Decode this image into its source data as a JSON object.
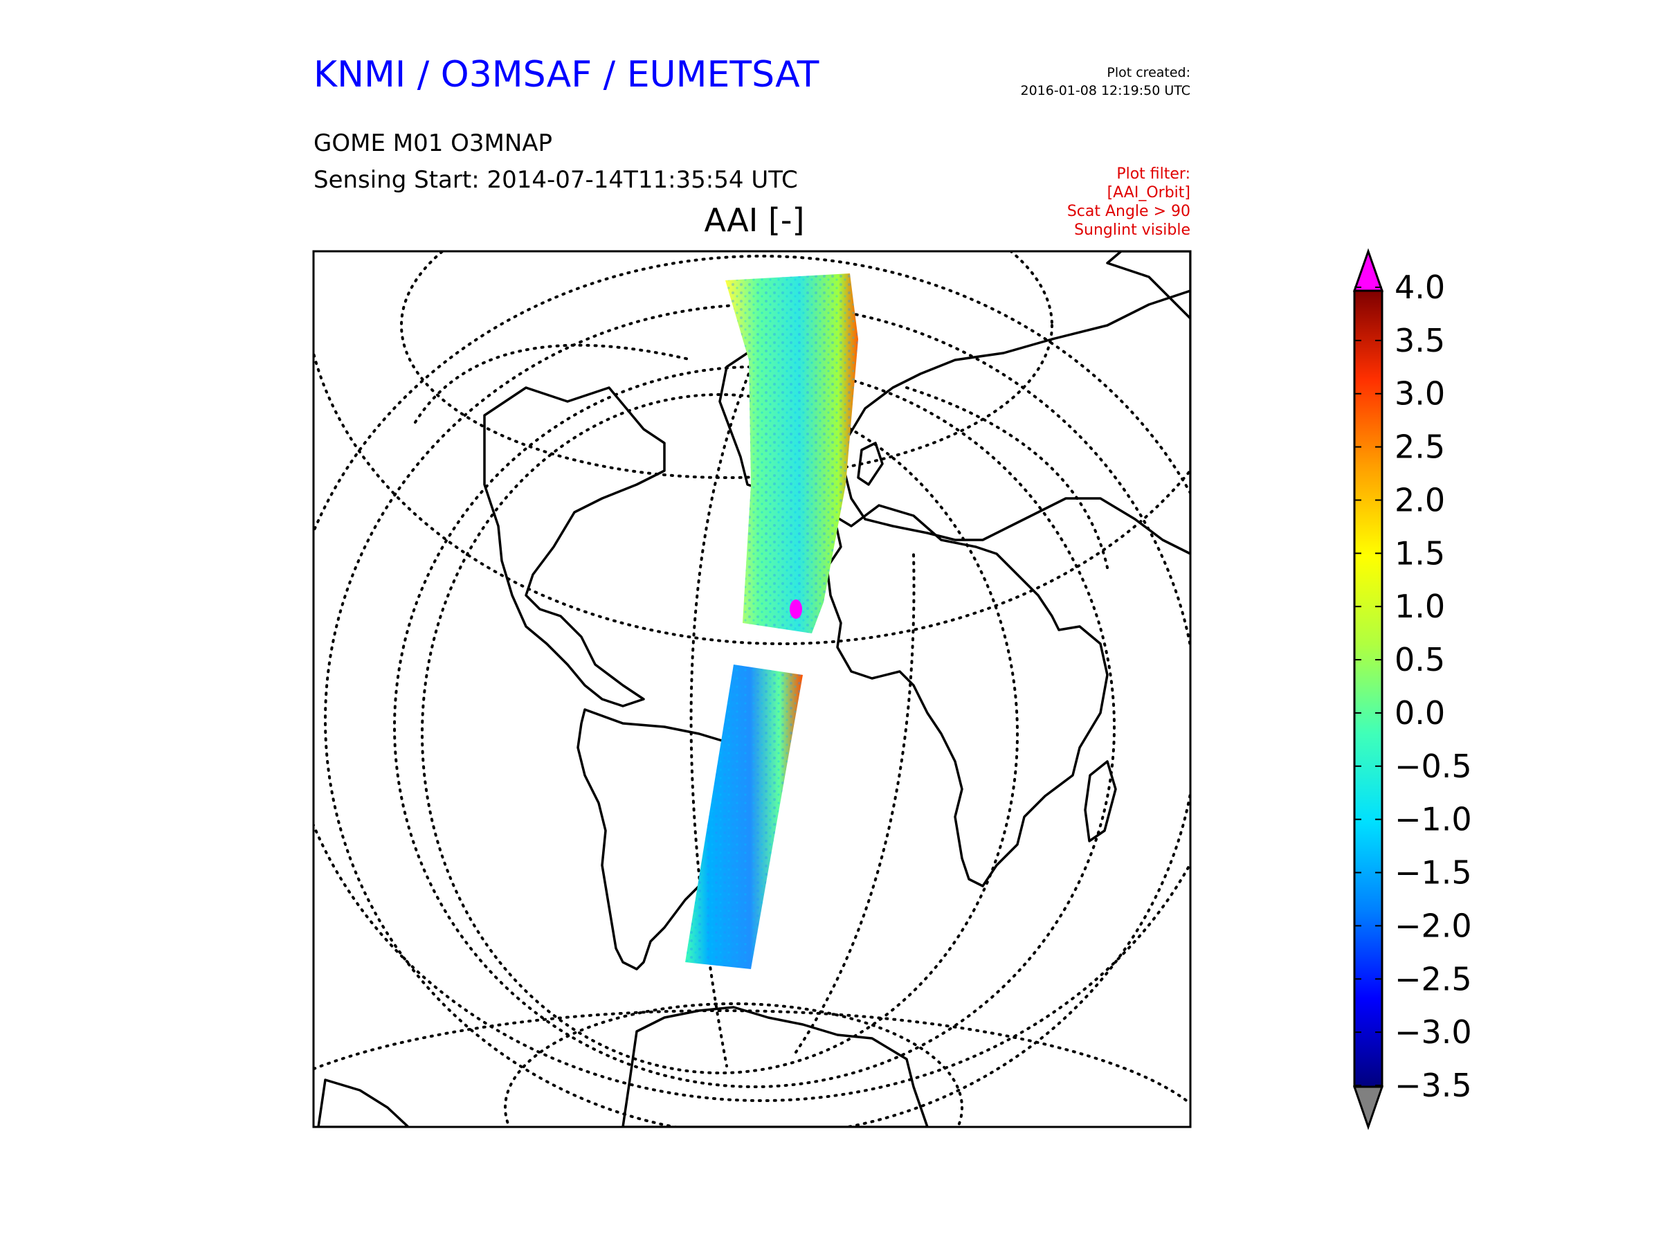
{
  "header": {
    "org_title": "KNMI / O3MSAF / EUMETSAT",
    "plot_created_label": "Plot created:",
    "plot_created_value": "2016-01-08 12:19:50 UTC",
    "product": "GOME M01 O3MNAP",
    "sensing_start": "Sensing Start: 2014-07-14T11:35:54 UTC",
    "filter_lines": [
      "Plot filter:",
      "[AAI_Orbit]",
      "Scat Angle > 90",
      "Sunglint visible"
    ],
    "title_color": "#0000ff",
    "filter_color": "#e00000"
  },
  "map": {
    "title": "AAI [-]",
    "projection": "orthographic",
    "graticule": "dotted",
    "coastlines": true
  },
  "colorbar": {
    "ticks": [
      "4.0",
      "3.5",
      "3.0",
      "2.5",
      "2.0",
      "1.5",
      "1.0",
      "0.5",
      "0.0",
      "−0.5",
      "−1.0",
      "−1.5",
      "−2.0",
      "−2.5",
      "−3.0",
      "−3.5"
    ],
    "max_color": "#ff00ff",
    "min_color": "#808080",
    "stops": [
      "#00007f",
      "#0000ff",
      "#0080ff",
      "#00e0ff",
      "#40ffb8",
      "#b0ff40",
      "#ffff00",
      "#ffa000",
      "#ff3000",
      "#7f0000"
    ]
  }
}
